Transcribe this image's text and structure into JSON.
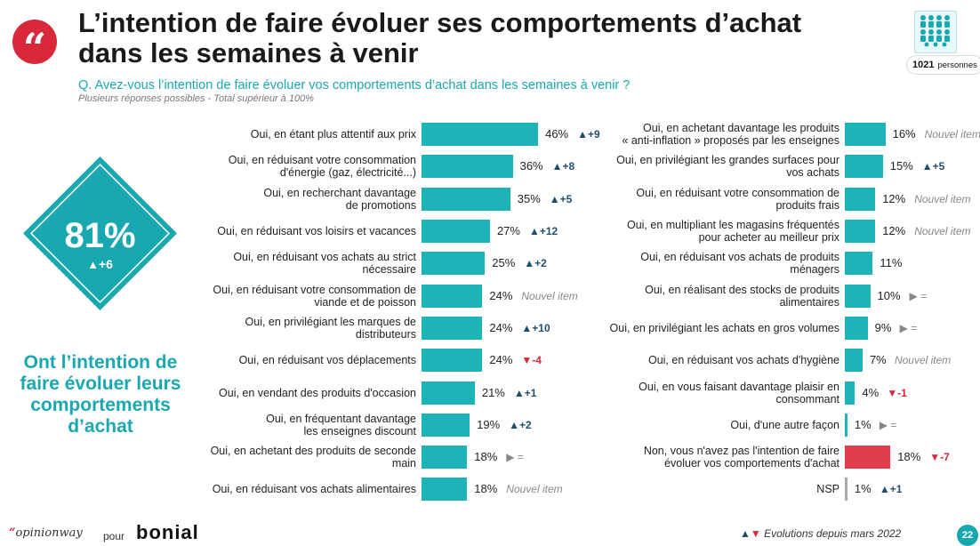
{
  "title_lines": [
    "L’intention de faire évoluer ses comportements d’achat",
    "dans les semaines à venir"
  ],
  "question": "Q. Avez-vous l’intention de faire évoluer vos comportements d’achat dans les semaines à venir ?",
  "subnote": "Plusieurs réponses possibles - Total supérieur à 100%",
  "sample": {
    "count": "1021",
    "unit": "personnes",
    "icon": "people-group-icon"
  },
  "headline": {
    "value": "81%",
    "evolution": "+6",
    "caption_lines": [
      "Ont l’intention de",
      "faire évoluer leurs",
      "comportements",
      "d’achat"
    ]
  },
  "colors": {
    "teal": "#1db3b9",
    "red": "#e23d4f",
    "grey": "#a9a9a9",
    "accent": "#d8283a",
    "up": "#1f4e6b"
  },
  "chart_data": {
    "type": "bar",
    "orientation": "horizontal",
    "unit": "%",
    "left": [
      {
        "label": [
          "Oui, en étant plus attentif aux prix"
        ],
        "value": 46,
        "value_label": "46%",
        "evolution": "+9",
        "trend": "up"
      },
      {
        "label": [
          "Oui, en réduisant votre consommation",
          "d'énergie (gaz, électricité...)"
        ],
        "value": 36,
        "value_label": "36%",
        "evolution": "+8",
        "trend": "up"
      },
      {
        "label": [
          "Oui, en recherchant davantage",
          "de promotions"
        ],
        "value": 35,
        "value_label": "35%",
        "evolution": "+5",
        "trend": "up"
      },
      {
        "label": [
          "Oui, en réduisant vos loisirs et vacances"
        ],
        "value": 27,
        "value_label": "27%",
        "evolution": "+12",
        "trend": "up"
      },
      {
        "label": [
          "Oui, en réduisant vos achats au strict",
          "nécessaire"
        ],
        "value": 25,
        "value_label": "25%",
        "evolution": "+2",
        "trend": "up"
      },
      {
        "label": [
          "Oui, en réduisant votre consommation de",
          "viande et de poisson"
        ],
        "value": 24,
        "value_label": "24%",
        "evolution": "Nouvel item",
        "trend": "new"
      },
      {
        "label": [
          "Oui, en privilégiant les marques de",
          "distributeurs"
        ],
        "value": 24,
        "value_label": "24%",
        "evolution": "+10",
        "trend": "up"
      },
      {
        "label": [
          "Oui, en réduisant vos déplacements"
        ],
        "value": 24,
        "value_label": "24%",
        "evolution": "-4",
        "trend": "down"
      },
      {
        "label": [
          "Oui, en vendant des produits d'occasion"
        ],
        "value": 21,
        "value_label": "21%",
        "evolution": "+1",
        "trend": "up"
      },
      {
        "label": [
          "Oui, en fréquentant davantage",
          "les enseignes discount"
        ],
        "value": 19,
        "value_label": "19%",
        "evolution": "+2",
        "trend": "up"
      },
      {
        "label": [
          "Oui, en achetant des produits de seconde",
          "main"
        ],
        "value": 18,
        "value_label": "18%",
        "evolution": "=",
        "trend": "equal"
      },
      {
        "label": [
          "Oui, en réduisant vos achats alimentaires"
        ],
        "value": 18,
        "value_label": "18%",
        "evolution": "Nouvel item",
        "trend": "new"
      }
    ],
    "right": [
      {
        "label": [
          "Oui, en achetant davantage les produits",
          "« anti-inflation » proposés par les enseignes"
        ],
        "value": 16,
        "value_label": "16%",
        "evolution": "Nouvel item",
        "trend": "new"
      },
      {
        "label": [
          "Oui, en privilégiant les grandes surfaces pour",
          "vos achats"
        ],
        "value": 15,
        "value_label": "15%",
        "evolution": "+5",
        "trend": "up"
      },
      {
        "label": [
          "Oui, en réduisant votre consommation de",
          "produits frais"
        ],
        "value": 12,
        "value_label": "12%",
        "evolution": "Nouvel item",
        "trend": "new"
      },
      {
        "label": [
          "Oui, en multipliant les magasins fréquentés",
          "pour acheter au meilleur prix"
        ],
        "value": 12,
        "value_label": "12%",
        "evolution": "Nouvel item",
        "trend": "new"
      },
      {
        "label": [
          "Oui, en réduisant vos achats de produits",
          "ménagers"
        ],
        "value": 11,
        "value_label": "11%",
        "evolution": "",
        "trend": "none"
      },
      {
        "label": [
          "Oui, en réalisant des stocks de produits",
          "alimentaires"
        ],
        "value": 10,
        "value_label": "10%",
        "evolution": "=",
        "trend": "equal"
      },
      {
        "label": [
          "Oui, en privilégiant les achats en gros volumes"
        ],
        "value": 9,
        "value_label": "9%",
        "evolution": "=",
        "trend": "equal"
      },
      {
        "label": [
          "Oui, en réduisant vos achats d'hygiène"
        ],
        "value": 7,
        "value_label": "7%",
        "evolution": "Nouvel item",
        "trend": "new"
      },
      {
        "label": [
          "Oui, en vous faisant davantage plaisir en",
          "consommant"
        ],
        "value": 4,
        "value_label": "4%",
        "evolution": "-1",
        "trend": "down"
      },
      {
        "label": [
          "Oui, d'une autre façon"
        ],
        "value": 1,
        "value_label": "1%",
        "evolution": "=",
        "trend": "equal"
      },
      {
        "label": [
          "Non, vous n'avez pas l'intention de faire",
          "évoluer vos comportements d'achat"
        ],
        "value": 18,
        "value_label": "18%",
        "evolution": "-7",
        "trend": "down",
        "color": "red"
      },
      {
        "label": [
          "NSP"
        ],
        "value": 1,
        "value_label": "1%",
        "evolution": "+1",
        "trend": "up",
        "color": "grey"
      }
    ]
  },
  "footer": {
    "brand": "opinionway",
    "brand_quote": "“",
    "pour": "pour",
    "partner": "bonial",
    "legend": "Evolutions depuis mars 2022",
    "page": "22"
  }
}
